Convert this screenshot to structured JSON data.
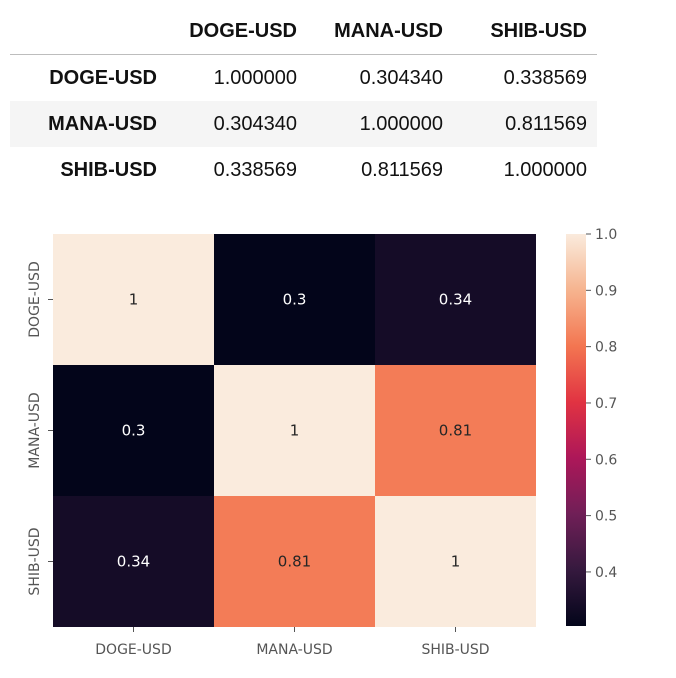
{
  "table": {
    "columns": [
      "DOGE-USD",
      "MANA-USD",
      "SHIB-USD"
    ],
    "rows": [
      {
        "label": "DOGE-USD",
        "values": [
          "1.000000",
          "0.304340",
          "0.338569"
        ]
      },
      {
        "label": "MANA-USD",
        "values": [
          "0.304340",
          "1.000000",
          "0.811569"
        ]
      },
      {
        "label": "SHIB-USD",
        "values": [
          "0.338569",
          "0.811569",
          "1.000000"
        ]
      }
    ]
  },
  "chart_data": {
    "type": "heatmap",
    "x_labels": [
      "DOGE-USD",
      "MANA-USD",
      "SHIB-USD"
    ],
    "y_labels": [
      "DOGE-USD",
      "MANA-USD",
      "SHIB-USD"
    ],
    "values": [
      [
        1.0,
        0.3,
        0.34
      ],
      [
        0.3,
        1.0,
        0.81
      ],
      [
        0.34,
        0.81,
        1.0
      ]
    ],
    "annotations": [
      [
        "1",
        "0.3",
        "0.34"
      ],
      [
        "0.3",
        "1",
        "0.81"
      ],
      [
        "0.34",
        "0.81",
        "1"
      ]
    ],
    "colorbar": {
      "min": 0.304,
      "max": 1.0,
      "ticks": [
        0.4,
        0.5,
        0.6,
        0.7,
        0.8,
        0.9,
        1.0
      ],
      "tick_labels": [
        "0.4",
        "0.5",
        "0.6",
        "0.7",
        "0.8",
        "0.9",
        "1.0"
      ]
    },
    "colormap": "rocket",
    "colormap_stops": [
      "#03051a",
      "#35193e",
      "#701f57",
      "#ad1759",
      "#e13342",
      "#f37651",
      "#f6b48f",
      "#faebdd"
    ]
  }
}
